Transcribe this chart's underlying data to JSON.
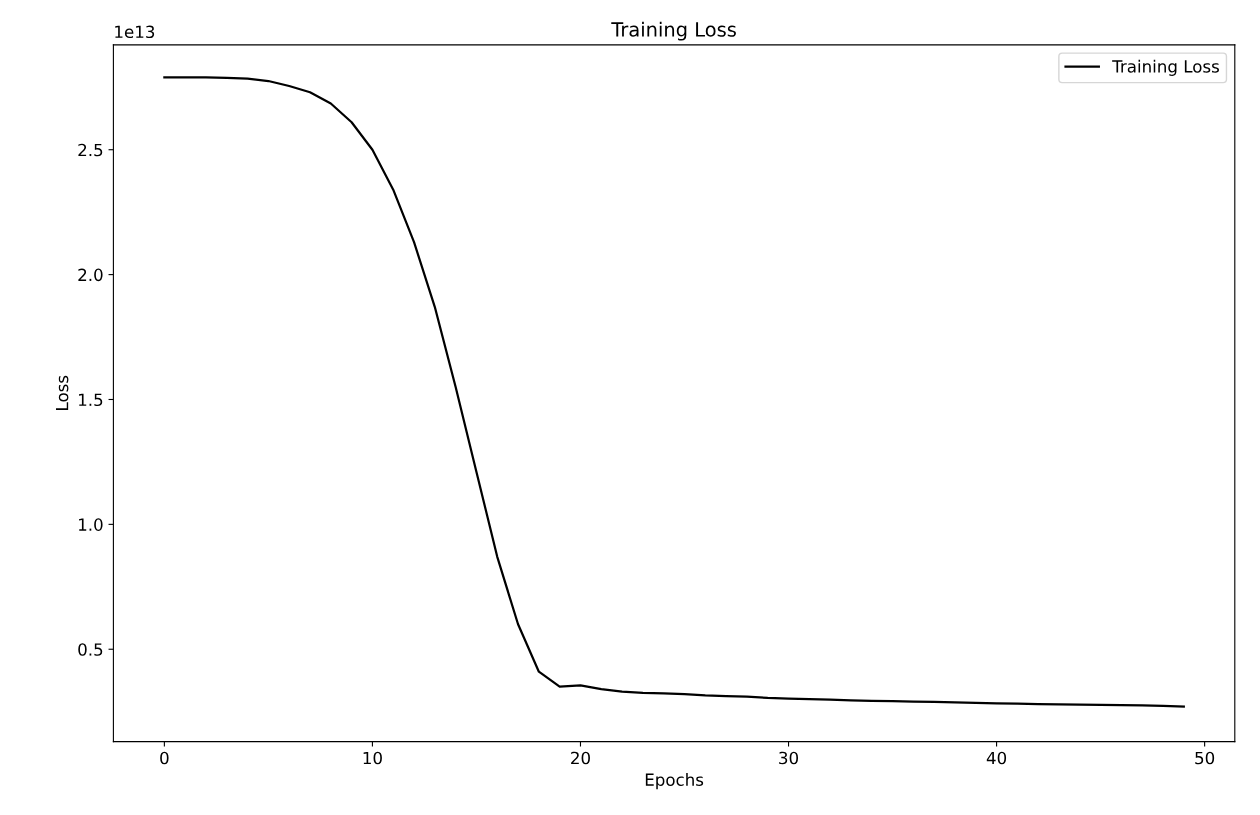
{
  "chart_data": {
    "type": "line",
    "title": "Training Loss",
    "xlabel": "Epochs",
    "ylabel": "Loss",
    "annotations": [
      "1e13"
    ],
    "x": [
      0,
      1,
      2,
      3,
      4,
      5,
      6,
      7,
      8,
      9,
      10,
      11,
      12,
      13,
      14,
      15,
      16,
      17,
      18,
      19,
      20,
      21,
      22,
      23,
      24,
      25,
      26,
      27,
      28,
      29,
      30,
      31,
      32,
      33,
      34,
      35,
      36,
      37,
      38,
      39,
      40,
      41,
      42,
      43,
      44,
      45,
      46,
      47,
      48,
      49
    ],
    "series": [
      {
        "name": "Training Loss",
        "color": "#000000",
        "values": [
          2.79,
          2.79,
          2.79,
          2.788,
          2.785,
          2.775,
          2.755,
          2.73,
          2.685,
          2.61,
          2.5,
          2.34,
          2.13,
          1.87,
          1.55,
          1.21,
          0.87,
          0.6,
          0.41,
          0.35,
          0.355,
          0.34,
          0.33,
          0.325,
          0.323,
          0.32,
          0.315,
          0.312,
          0.31,
          0.305,
          0.302,
          0.3,
          0.298,
          0.295,
          0.293,
          0.292,
          0.29,
          0.289,
          0.287,
          0.285,
          0.283,
          0.282,
          0.28,
          0.279,
          0.278,
          0.277,
          0.276,
          0.275,
          0.273,
          0.27
        ]
      }
    ],
    "xlim": [
      -2.45,
      51.45
    ],
    "ylim": [
      0.13,
      2.92
    ],
    "xticks": [
      0,
      10,
      20,
      30,
      40,
      50
    ],
    "yticks": [
      0.5,
      {
        "value": 1,
        "label": "1.0"
      },
      1.5,
      {
        "value": 2,
        "label": "2.0"
      },
      2.5
    ],
    "grid": false,
    "legend": "top right",
    "marker": "none",
    "line_style": "solid"
  }
}
